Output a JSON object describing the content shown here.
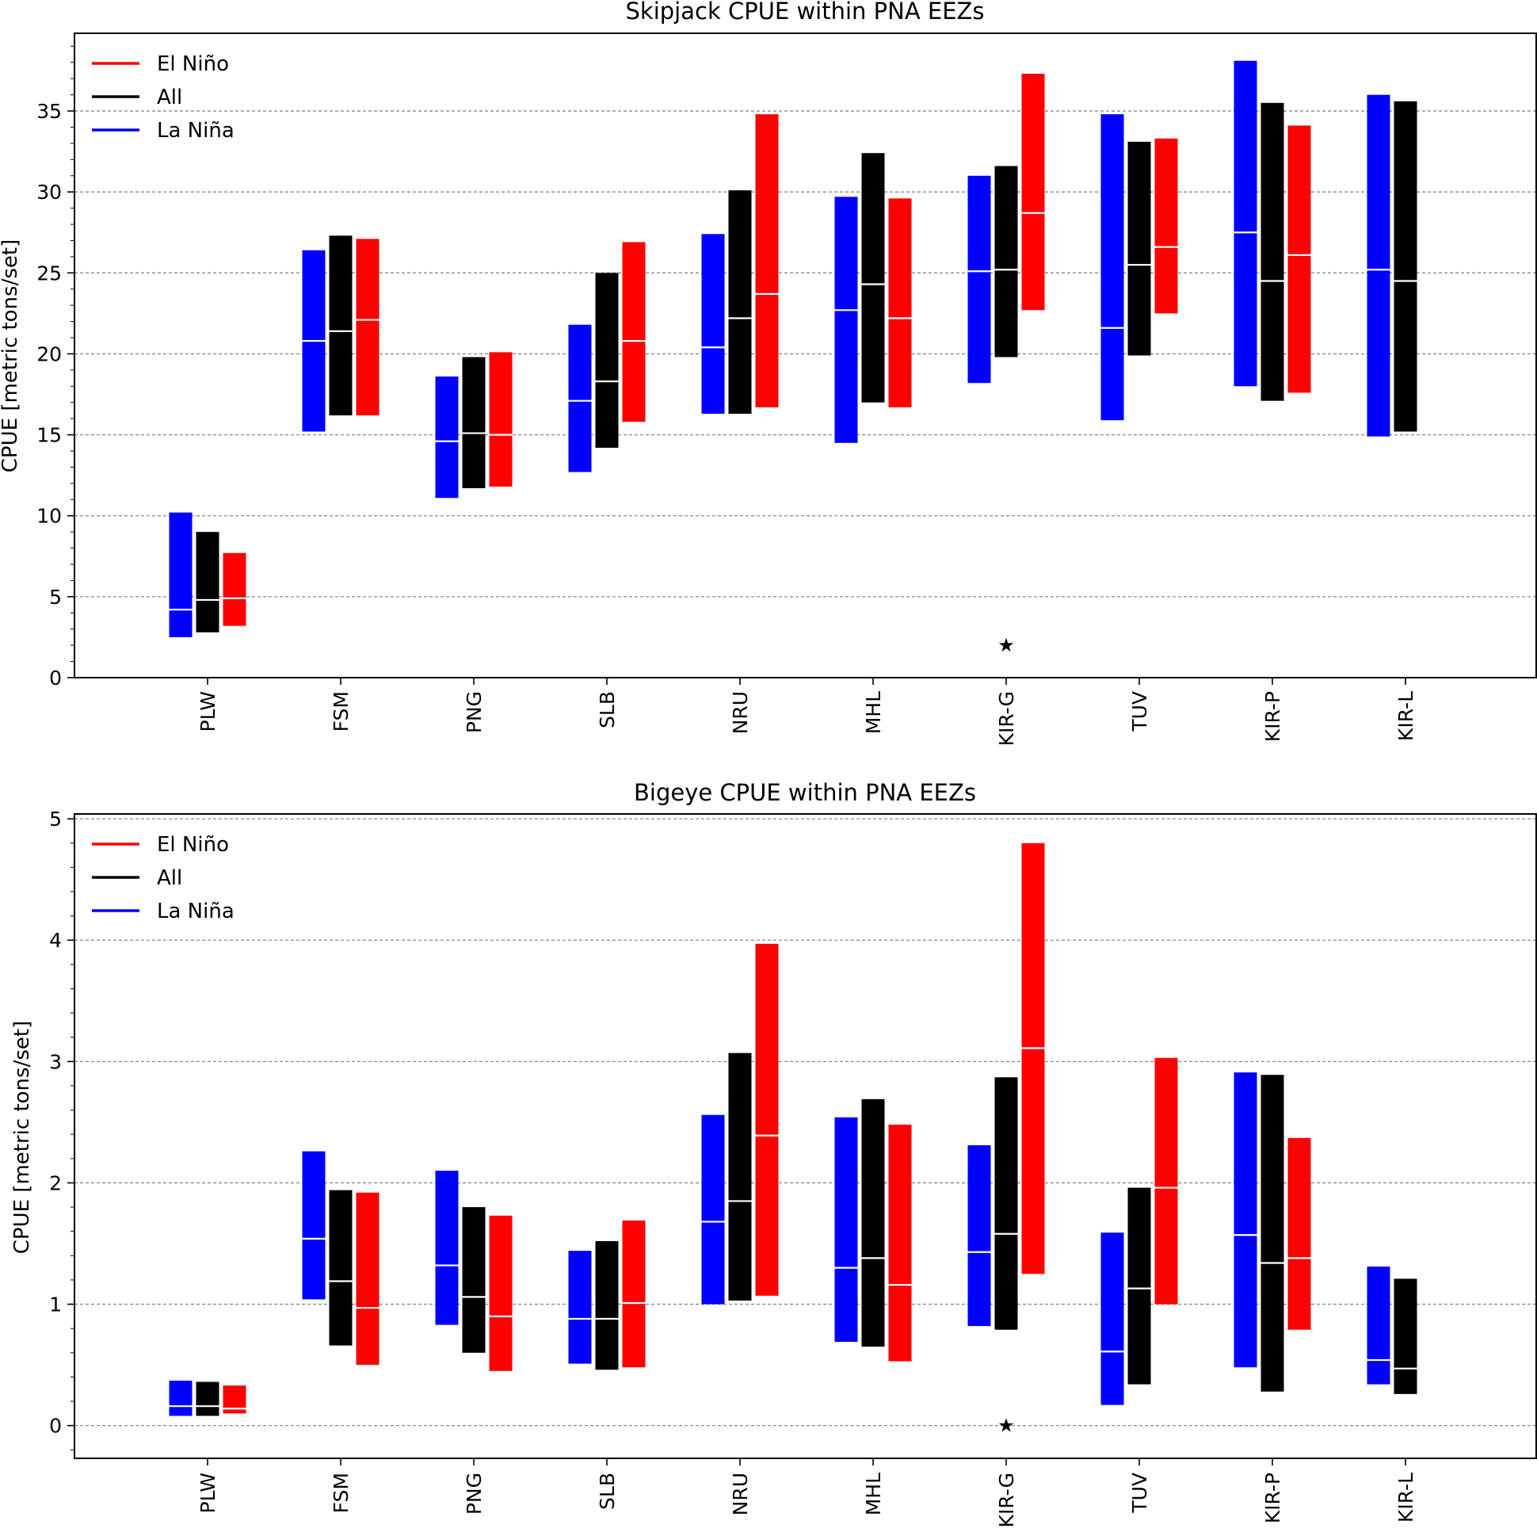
{
  "legend_entries": [
    {
      "label": "El Niño",
      "color": "#ff0000"
    },
    {
      "label": "All",
      "color": "#000000"
    },
    {
      "label": "La Niña",
      "color": "#0000ff"
    }
  ],
  "chart_data": [
    {
      "type": "range-bar",
      "title": "Skipjack CPUE within PNA EEZs",
      "ylabel": "CPUE [metric tons/set]",
      "xlabel": "",
      "ylim": [
        0,
        39.8
      ],
      "yticks": [
        0,
        5,
        10,
        15,
        20,
        25,
        30,
        35
      ],
      "grid": "horizontal dashed",
      "legend_position": "upper-left",
      "categories": [
        "PLW",
        "FSM",
        "PNG",
        "SLB",
        "NRU",
        "MHL",
        "KIR-G",
        "TUV",
        "KIR-P",
        "KIR-L"
      ],
      "series": [
        {
          "name": "La Niña",
          "color": "#0000ff",
          "low": [
            2.5,
            15.2,
            11.1,
            12.7,
            16.3,
            14.5,
            18.2,
            15.9,
            18.0,
            14.9
          ],
          "median": [
            4.2,
            20.8,
            14.6,
            17.1,
            20.4,
            22.7,
            25.1,
            21.6,
            27.5,
            25.2
          ],
          "high": [
            10.2,
            26.4,
            18.6,
            21.8,
            27.4,
            29.7,
            31.0,
            34.8,
            38.1,
            36.0
          ]
        },
        {
          "name": "All",
          "color": "#000000",
          "low": [
            2.8,
            16.2,
            11.7,
            14.2,
            16.3,
            17.0,
            19.8,
            19.9,
            17.1,
            15.2
          ],
          "median": [
            4.8,
            21.4,
            15.1,
            18.3,
            22.2,
            24.3,
            25.2,
            25.5,
            24.5,
            24.5
          ],
          "high": [
            9.0,
            27.3,
            19.8,
            25.0,
            30.1,
            32.4,
            31.6,
            33.1,
            35.5,
            35.6
          ]
        },
        {
          "name": "El Niño",
          "color": "#ff0000",
          "low": [
            3.2,
            16.2,
            11.8,
            15.8,
            16.7,
            16.7,
            22.7,
            22.5,
            17.6,
            null
          ],
          "median": [
            4.9,
            22.1,
            15.0,
            20.8,
            23.7,
            22.2,
            28.7,
            26.6,
            26.1,
            null
          ],
          "high": [
            7.7,
            27.1,
            20.1,
            26.9,
            34.8,
            29.6,
            37.3,
            33.3,
            34.1,
            null
          ]
        }
      ],
      "markers": [
        {
          "category": "KIR-G",
          "y": 2.0,
          "symbol": "★"
        }
      ]
    },
    {
      "type": "range-bar",
      "title": "Bigeye CPUE within PNA EEZs",
      "ylabel": "CPUE [metric tons/set]",
      "xlabel": "",
      "ylim": [
        -0.27,
        5.04
      ],
      "yticks": [
        0,
        1,
        2,
        3,
        4,
        5
      ],
      "grid": "horizontal dashed",
      "legend_position": "upper-left",
      "categories": [
        "PLW",
        "FSM",
        "PNG",
        "SLB",
        "NRU",
        "MHL",
        "KIR-G",
        "TUV",
        "KIR-P",
        "KIR-L"
      ],
      "series": [
        {
          "name": "La Niña",
          "color": "#0000ff",
          "low": [
            0.08,
            1.04,
            0.83,
            0.51,
            1.0,
            0.69,
            0.82,
            0.17,
            0.48,
            0.34
          ],
          "median": [
            0.16,
            1.54,
            1.32,
            0.88,
            1.68,
            1.3,
            1.43,
            0.61,
            1.57,
            0.54
          ],
          "high": [
            0.37,
            2.26,
            2.1,
            1.44,
            2.56,
            2.54,
            2.31,
            1.59,
            2.91,
            1.31
          ]
        },
        {
          "name": "All",
          "color": "#000000",
          "low": [
            0.08,
            0.66,
            0.6,
            0.46,
            1.03,
            0.65,
            0.79,
            0.34,
            0.28,
            0.26
          ],
          "median": [
            0.16,
            1.19,
            1.06,
            0.88,
            1.85,
            1.38,
            1.58,
            1.13,
            1.34,
            0.47
          ],
          "high": [
            0.36,
            1.94,
            1.8,
            1.52,
            3.07,
            2.69,
            2.87,
            1.96,
            2.89,
            1.21
          ]
        },
        {
          "name": "El Niño",
          "color": "#ff0000",
          "low": [
            0.1,
            0.5,
            0.45,
            0.48,
            1.07,
            0.53,
            1.25,
            1.0,
            0.79,
            null
          ],
          "median": [
            0.14,
            0.97,
            0.9,
            1.01,
            2.39,
            1.16,
            3.11,
            1.96,
            1.38,
            null
          ],
          "high": [
            0.33,
            1.92,
            1.73,
            1.69,
            3.97,
            2.48,
            4.8,
            3.03,
            2.37,
            null
          ]
        }
      ],
      "markers": [
        {
          "category": "KIR-G",
          "y": 0.0,
          "symbol": "★"
        }
      ]
    }
  ]
}
